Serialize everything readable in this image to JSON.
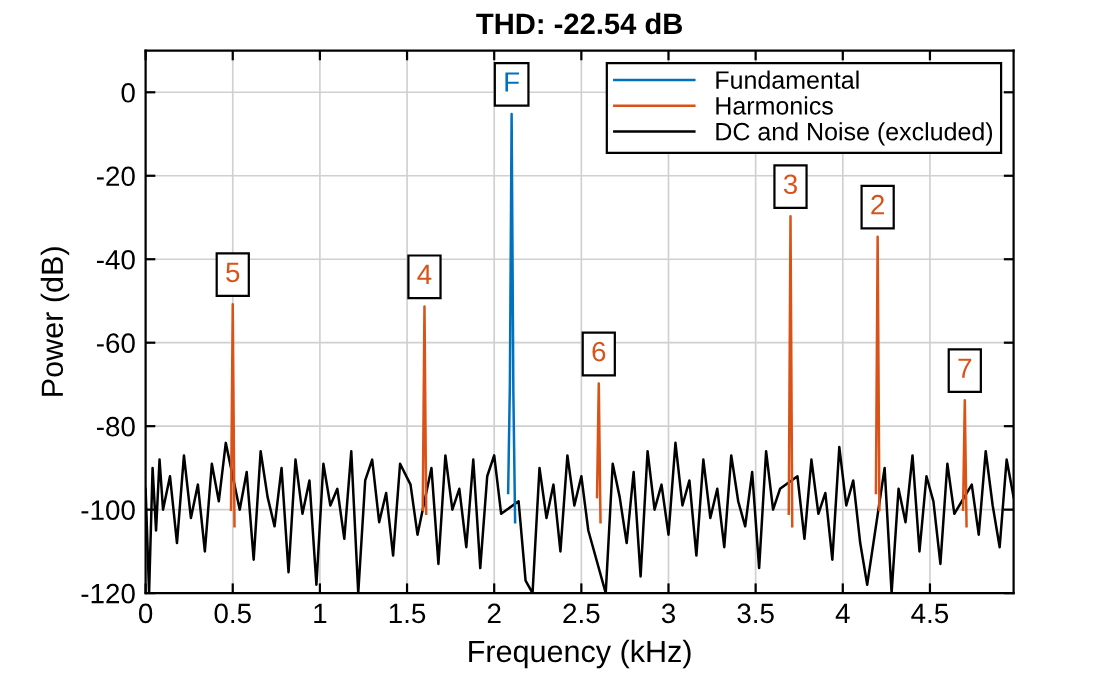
{
  "chart_data": {
    "type": "line",
    "title": "THD: -22.54 dB",
    "xlabel": "Frequency (kHz)",
    "ylabel": "Power (dB)",
    "xlim": [
      0,
      4.98
    ],
    "ylim": [
      -120,
      10
    ],
    "xticks": [
      0,
      0.5,
      1,
      1.5,
      2,
      2.5,
      3,
      3.5,
      4,
      4.5
    ],
    "yticks": [
      -120,
      -100,
      -80,
      -60,
      -40,
      -20,
      0
    ],
    "grid": true,
    "legend": "top right",
    "marker": "none",
    "line_style": "solid",
    "series": [
      {
        "name": "Fundamental",
        "color": "#0072bd",
        "x": [
          2.08,
          2.09,
          2.1,
          2.11,
          2.12
        ],
        "values": [
          -96,
          -70,
          -5.2,
          -72,
          -103
        ]
      },
      {
        "name": "Harmonics",
        "color": "#d95319",
        "x": [
          0.49,
          0.5,
          0.51,
          1.0,
          1.59,
          1.6,
          1.61,
          2.3,
          2.59,
          2.6,
          2.61,
          3.2,
          3.69,
          3.7,
          3.71,
          3.9,
          4.19,
          4.2,
          4.21,
          4.4,
          4.69,
          4.7,
          4.71
        ],
        "values": [
          -100,
          -50.8,
          -104,
          null,
          -100,
          -51.3,
          -101,
          null,
          -97,
          -69.8,
          -103,
          null,
          -101,
          -29.7,
          -104,
          null,
          -96,
          -34.6,
          -100,
          null,
          -100,
          -73.8,
          -104
        ]
      },
      {
        "name": "DC and Noise (excluded)",
        "color": "#000000",
        "x": [
          0,
          0.02,
          0.04,
          0.06,
          0.08,
          0.1,
          0.14,
          0.18,
          0.22,
          0.26,
          0.3,
          0.34,
          0.38,
          0.42,
          0.46,
          0.54,
          0.58,
          0.62,
          0.66,
          0.7,
          0.74,
          0.78,
          0.82,
          0.86,
          0.9,
          0.94,
          0.98,
          1.02,
          1.06,
          1.1,
          1.14,
          1.18,
          1.22,
          1.26,
          1.3,
          1.34,
          1.38,
          1.42,
          1.46,
          1.52,
          1.56,
          1.64,
          1.68,
          1.72,
          1.76,
          1.8,
          1.84,
          1.88,
          1.92,
          1.96,
          2.0,
          2.04,
          2.14,
          2.18,
          2.22,
          2.26,
          2.3,
          2.34,
          2.38,
          2.42,
          2.46,
          2.5,
          2.54,
          2.64,
          2.68,
          2.72,
          2.76,
          2.8,
          2.84,
          2.88,
          2.92,
          2.96,
          3.0,
          3.04,
          3.08,
          3.12,
          3.16,
          3.2,
          3.24,
          3.28,
          3.32,
          3.36,
          3.4,
          3.44,
          3.48,
          3.52,
          3.56,
          3.6,
          3.64,
          3.74,
          3.78,
          3.82,
          3.86,
          3.9,
          3.94,
          3.98,
          4.02,
          4.06,
          4.1,
          4.14,
          4.24,
          4.28,
          4.32,
          4.36,
          4.4,
          4.44,
          4.48,
          4.52,
          4.56,
          4.6,
          4.64,
          4.74,
          4.78,
          4.82,
          4.86,
          4.9,
          4.94,
          4.98
        ],
        "values": [
          -95,
          -120,
          -90,
          -105,
          -88,
          -100,
          -92,
          -108,
          -87,
          -102,
          -94,
          -110,
          -89,
          -98,
          -84,
          -100,
          -91,
          -112,
          -86,
          -97,
          -104,
          -90,
          -115,
          -88,
          -101,
          -93,
          -118,
          -89,
          -99,
          -95,
          -107,
          -86,
          -120,
          -93,
          -88,
          -103,
          -96,
          -111,
          -89,
          -94,
          -106,
          -90,
          -113,
          -87,
          -100,
          -95,
          -109,
          -88,
          -114,
          -92,
          -87,
          -101,
          -98,
          -117,
          -120,
          -90,
          -102,
          -94,
          -110,
          -87,
          -99,
          -92,
          -105,
          -120,
          -89,
          -97,
          -108,
          -91,
          -116,
          -86,
          -100,
          -94,
          -106,
          -84,
          -99,
          -93,
          -111,
          -88,
          -102,
          -95,
          -109,
          -87,
          -98,
          -104,
          -91,
          -114,
          -86,
          -100,
          -95,
          -92,
          -107,
          -88,
          -101,
          -96,
          -112,
          -85,
          -99,
          -93,
          -108,
          -118,
          -90,
          -120,
          -95,
          -103,
          -87,
          -110,
          -92,
          -98,
          -113,
          -89,
          -101,
          -94,
          -106,
          -86,
          -99,
          -109,
          -88,
          -97
        ]
      }
    ],
    "annotations": [
      {
        "text": "F",
        "x": 2.1,
        "y": -5.2
      },
      {
        "text": "5",
        "x": 0.5,
        "y": -50.8
      },
      {
        "text": "4",
        "x": 1.6,
        "y": -51.3
      },
      {
        "text": "6",
        "x": 2.6,
        "y": -69.8
      },
      {
        "text": "3",
        "x": 3.7,
        "y": -29.7
      },
      {
        "text": "2",
        "x": 4.2,
        "y": -34.6
      },
      {
        "text": "7",
        "x": 4.7,
        "y": -73.8
      }
    ]
  }
}
